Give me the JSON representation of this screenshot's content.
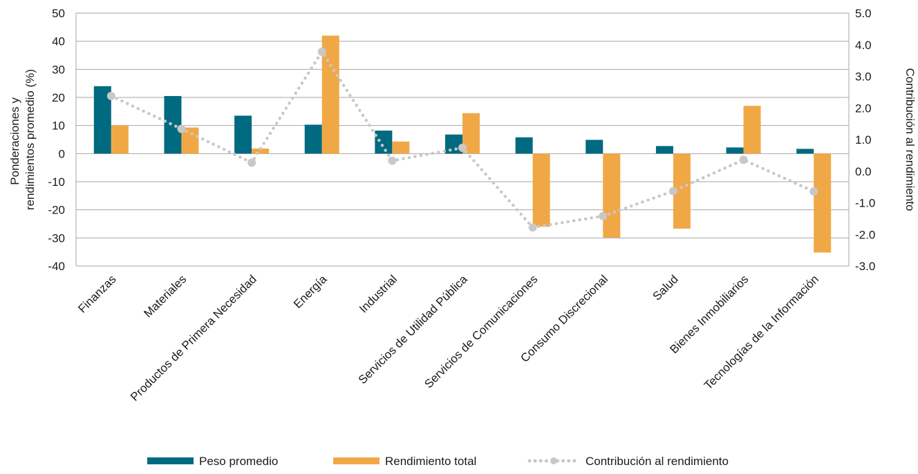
{
  "chart_data": {
    "type": "bar",
    "categories": [
      "Finanzas",
      "Materiales",
      "Productos de Primera Necesidad",
      "Energía",
      "Industrial",
      "Servicios de Utilidad Pública",
      "Servicios de Comunicaciones",
      "Consumo Discrecional",
      "Salud",
      "Bienes Inmobiliarios",
      "Tecnologías de la Información"
    ],
    "series": [
      {
        "name": "Peso promedio",
        "type": "bar",
        "axis": "left",
        "color": "#006a80",
        "values": [
          24.0,
          20.5,
          13.5,
          10.3,
          8.2,
          6.8,
          5.8,
          4.9,
          2.7,
          2.2,
          1.7
        ]
      },
      {
        "name": "Rendimiento total",
        "type": "bar",
        "axis": "left",
        "color": "#f0a847",
        "values": [
          10.1,
          9.3,
          1.8,
          42.0,
          4.3,
          14.4,
          -26.0,
          -29.9,
          -26.7,
          17.0,
          -35.2
        ]
      },
      {
        "name": "Contribución al rendimiento",
        "type": "line",
        "axis": "right",
        "color": "#c8c8c8",
        "values": [
          2.38,
          1.34,
          0.27,
          3.78,
          0.33,
          0.74,
          -1.78,
          -1.42,
          -0.63,
          0.36,
          -0.64
        ]
      }
    ],
    "ylabel_left": "Ponderaciones y rendimientos promedio (%)",
    "ylabel_right": "Contribución al rendimiento",
    "ylim_left": [
      -40,
      50
    ],
    "ylim_right": [
      -3.0,
      5.0
    ],
    "yticks_left": [
      "50",
      "40",
      "30",
      "20",
      "10",
      "0",
      "-10",
      "-20",
      "-30",
      "-40"
    ],
    "yticks_right": [
      "5.0",
      "4.0",
      "3.0",
      "2.0",
      "1.0",
      "0.0",
      "-1.0",
      "-2.0",
      "-3.0"
    ],
    "ylabel_left_lines": [
      "Ponderaciones y",
      "rendimientos promedio (%)"
    ],
    "grid": true,
    "legend_position": "bottom"
  }
}
